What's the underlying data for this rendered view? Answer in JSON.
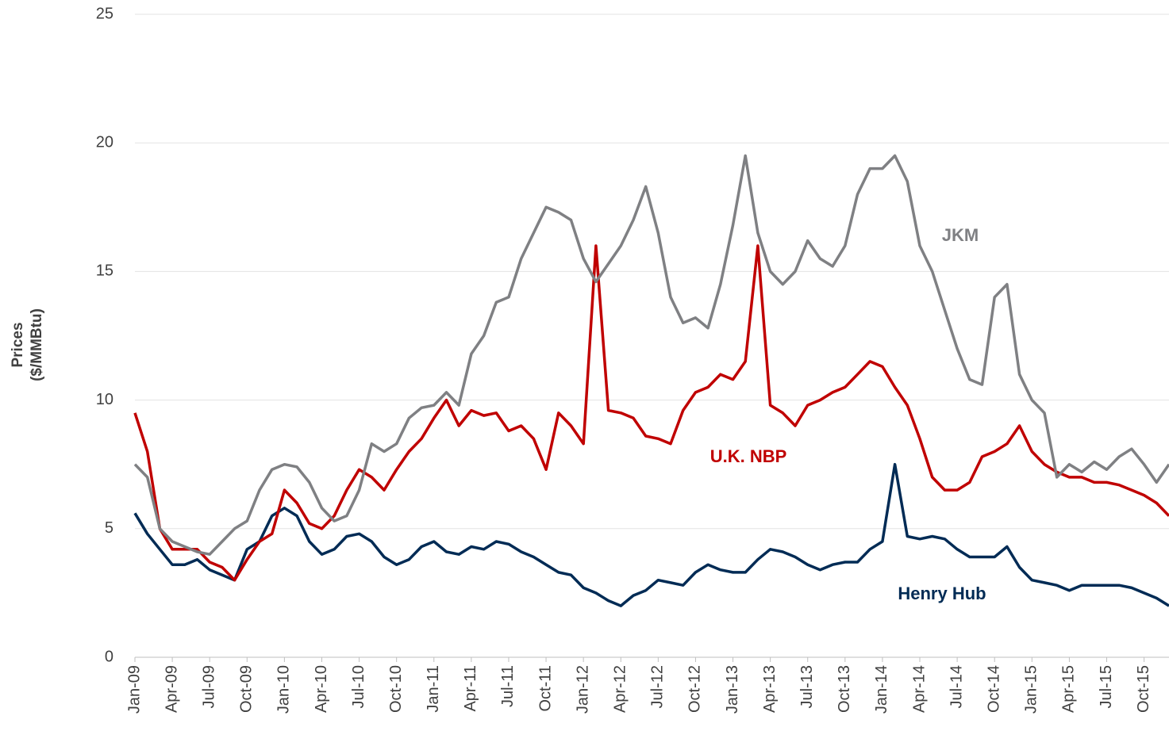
{
  "chart_data": {
    "type": "line",
    "y_label": [
      "Prices",
      "($/MMBtu)"
    ],
    "x": [
      "2009-01",
      "2009-02",
      "2009-03",
      "2009-04",
      "2009-05",
      "2009-06",
      "2009-07",
      "2009-08",
      "2009-09",
      "2009-10",
      "2009-11",
      "2009-12",
      "2010-01",
      "2010-02",
      "2010-03",
      "2010-04",
      "2010-05",
      "2010-06",
      "2010-07",
      "2010-08",
      "2010-09",
      "2010-10",
      "2010-11",
      "2010-12",
      "2011-01",
      "2011-02",
      "2011-03",
      "2011-04",
      "2011-05",
      "2011-06",
      "2011-07",
      "2011-08",
      "2011-09",
      "2011-10",
      "2011-11",
      "2011-12",
      "2012-01",
      "2012-02",
      "2012-03",
      "2012-04",
      "2012-05",
      "2012-06",
      "2012-07",
      "2012-08",
      "2012-09",
      "2012-10",
      "2012-11",
      "2012-12",
      "2013-01",
      "2013-02",
      "2013-03",
      "2013-04",
      "2013-05",
      "2013-06",
      "2013-07",
      "2013-08",
      "2013-09",
      "2013-10",
      "2013-11",
      "2013-12",
      "2014-01",
      "2014-02",
      "2014-03",
      "2014-04",
      "2014-05",
      "2014-06",
      "2014-07",
      "2014-08",
      "2014-09",
      "2014-10",
      "2014-11",
      "2014-12",
      "2015-01",
      "2015-02",
      "2015-03",
      "2015-04",
      "2015-05",
      "2015-06",
      "2015-07",
      "2015-08",
      "2015-09",
      "2015-10",
      "2015-11",
      "2015-12"
    ],
    "series": [
      {
        "name": "JKM",
        "color": "#7f8083",
        "values": [
          7.5,
          7,
          5,
          4.5,
          4.3,
          4.1,
          4,
          4.5,
          5,
          5.3,
          6.5,
          7.3,
          7.5,
          7.4,
          6.8,
          5.8,
          5.3,
          5.5,
          6.5,
          8.3,
          8,
          8.3,
          9.3,
          9.7,
          9.8,
          10.3,
          9.8,
          11.8,
          12.5,
          13.8,
          14,
          15.5,
          16.5,
          17.5,
          17.3,
          17,
          15.5,
          14.6,
          15.3,
          16,
          17,
          18.3,
          16.5,
          14,
          13,
          13.2,
          12.8,
          14.5,
          16.8,
          19.5,
          16.5,
          15,
          14.5,
          15,
          16.2,
          15.5,
          15.2,
          16,
          18,
          19,
          19,
          19.5,
          18.5,
          16,
          15,
          13.5,
          12,
          10.8,
          10.6,
          14,
          14.5,
          11,
          10,
          9.5,
          7,
          7.5,
          7.2,
          7.6,
          7.3,
          7.8,
          8.1,
          7.5,
          6.8,
          7.5
        ]
      },
      {
        "name": "U.K. NBP",
        "color": "#c00000",
        "values": [
          9.5,
          8,
          5,
          4.2,
          4.2,
          4.2,
          3.7,
          3.5,
          3,
          3.8,
          4.5,
          4.8,
          6.5,
          6,
          5.2,
          5,
          5.5,
          6.5,
          7.3,
          7,
          6.5,
          7.3,
          8,
          8.5,
          9.3,
          10,
          9,
          9.6,
          9.4,
          9.5,
          8.8,
          9,
          8.5,
          7.3,
          9.5,
          9,
          8.3,
          16,
          9.6,
          9.5,
          9.3,
          8.6,
          8.5,
          8.3,
          9.6,
          10.3,
          10.5,
          11,
          10.8,
          11.5,
          16,
          9.8,
          9.5,
          9,
          9.8,
          10,
          10.3,
          10.5,
          11,
          11.5,
          11.3,
          10.5,
          9.8,
          8.5,
          7,
          6.5,
          6.5,
          6.8,
          7.8,
          8,
          8.3,
          9,
          8,
          7.5,
          7.2,
          7,
          7,
          6.8,
          6.8,
          6.7,
          6.5,
          6.3,
          6,
          5.5
        ]
      },
      {
        "name": "Henry Hub",
        "color": "#002b55",
        "values": [
          5.6,
          4.8,
          4.2,
          3.6,
          3.6,
          3.8,
          3.4,
          3.2,
          3,
          4.2,
          4.5,
          5.5,
          5.8,
          5.5,
          4.5,
          4,
          4.2,
          4.7,
          4.8,
          4.5,
          3.9,
          3.6,
          3.8,
          4.3,
          4.5,
          4.1,
          4,
          4.3,
          4.2,
          4.5,
          4.4,
          4.1,
          3.9,
          3.6,
          3.3,
          3.2,
          2.7,
          2.5,
          2.2,
          2,
          2.4,
          2.6,
          3,
          2.9,
          2.8,
          3.3,
          3.6,
          3.4,
          3.3,
          3.3,
          3.8,
          4.2,
          4.1,
          3.9,
          3.6,
          3.4,
          3.6,
          3.7,
          3.7,
          4.2,
          4.5,
          7.5,
          4.7,
          4.6,
          4.7,
          4.6,
          4.2,
          3.9,
          3.9,
          3.9,
          4.3,
          3.5,
          3,
          2.9,
          2.8,
          2.6,
          2.8,
          2.8,
          2.8,
          2.8,
          2.7,
          2.5,
          2.3,
          2
        ]
      }
    ],
    "xticks": [
      {
        "value": "2009-01",
        "label": "Jan-09"
      },
      {
        "value": "2009-04",
        "label": "Apr-09"
      },
      {
        "value": "2009-07",
        "label": "Jul-09"
      },
      {
        "value": "2009-10",
        "label": "Oct-09"
      },
      {
        "value": "2010-01",
        "label": "Jan-10"
      },
      {
        "value": "2010-04",
        "label": "Apr-10"
      },
      {
        "value": "2010-07",
        "label": "Jul-10"
      },
      {
        "value": "2010-10",
        "label": "Oct-10"
      },
      {
        "value": "2011-01",
        "label": "Jan-11"
      },
      {
        "value": "2011-04",
        "label": "Apr-11"
      },
      {
        "value": "2011-07",
        "label": "Jul-11"
      },
      {
        "value": "2011-10",
        "label": "Oct-11"
      },
      {
        "value": "2012-01",
        "label": "Jan-12"
      },
      {
        "value": "2012-04",
        "label": "Apr-12"
      },
      {
        "value": "2012-07",
        "label": "Jul-12"
      },
      {
        "value": "2012-10",
        "label": "Oct-12"
      },
      {
        "value": "2013-01",
        "label": "Jan-13"
      },
      {
        "value": "2013-04",
        "label": "Apr-13"
      },
      {
        "value": "2013-07",
        "label": "Jul-13"
      },
      {
        "value": "2013-10",
        "label": "Oct-13"
      },
      {
        "value": "2014-01",
        "label": "Jan-14"
      },
      {
        "value": "2014-04",
        "label": "Apr-14"
      },
      {
        "value": "2014-07",
        "label": "Jul-14"
      },
      {
        "value": "2014-10",
        "label": "Oct-14"
      },
      {
        "value": "2015-01",
        "label": "Jan-15"
      },
      {
        "value": "2015-04",
        "label": "Apr-15"
      },
      {
        "value": "2015-07",
        "label": "Jul-15"
      },
      {
        "value": "2015-10",
        "label": "Oct-15"
      }
    ],
    "ylim": [
      0,
      25
    ],
    "yticks": [
      0,
      5,
      10,
      15,
      20,
      25
    ],
    "grid": true
  }
}
